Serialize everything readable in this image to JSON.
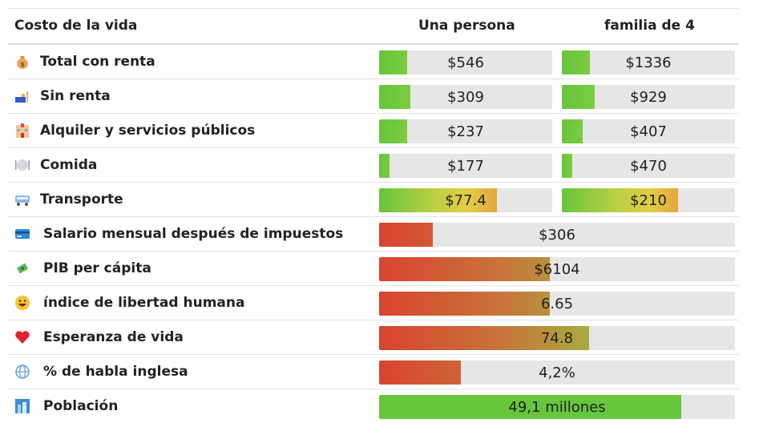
{
  "header": {
    "title": "Costo de la vida",
    "col1": "Una persona",
    "col2": "familia de 4"
  },
  "cost_rows": [
    {
      "icon": "money-bag-icon",
      "label": "Total con renta",
      "single": "$546",
      "single_fill": 0.16,
      "family": "$1336",
      "family_fill": 0.16,
      "style": "green"
    },
    {
      "icon": "couch-lamp-icon",
      "label": "Sin renta",
      "single": "$309",
      "single_fill": 0.18,
      "family": "$929",
      "family_fill": 0.19,
      "style": "green"
    },
    {
      "icon": "building-icon",
      "label": "Alquiler y servicios públicos",
      "single": "$237",
      "single_fill": 0.16,
      "family": "$407",
      "family_fill": 0.12,
      "style": "green"
    },
    {
      "icon": "plate-icon",
      "label": "Comida",
      "single": "$177",
      "single_fill": 0.06,
      "family": "$470",
      "family_fill": 0.06,
      "style": "green"
    },
    {
      "icon": "bus-icon",
      "label": "Transporte",
      "single": "$77.4",
      "single_fill": 0.68,
      "family": "$210",
      "family_fill": 0.67,
      "style": "warm"
    }
  ],
  "stat_rows": [
    {
      "icon": "credit-card-icon",
      "label": "Salario mensual después de impuestos",
      "value": "$306",
      "fill": 0.15,
      "style": "red"
    },
    {
      "icon": "money-wings-icon",
      "label": "PIB per cápita",
      "value": "$6104",
      "fill": 0.48,
      "style": "red"
    },
    {
      "icon": "grinning-face-icon",
      "label": "índice de libertad humana",
      "value": "6.65",
      "fill": 0.48,
      "style": "red"
    },
    {
      "icon": "heart-icon",
      "label": "Esperanza de vida",
      "value": "74.8",
      "fill": 0.59,
      "style": "red"
    },
    {
      "icon": "globe-icon",
      "label": "% de habla inglesa",
      "value": "4,2%",
      "fill": 0.23,
      "style": "red"
    },
    {
      "icon": "city-icon",
      "label": "Población",
      "value": "49,1 millones",
      "fill": 0.85,
      "style": "solid"
    }
  ],
  "colors": {
    "green": "#66c63c",
    "red": "#d9432f",
    "orange": "#e3a640",
    "track": "#e6e6e6"
  }
}
